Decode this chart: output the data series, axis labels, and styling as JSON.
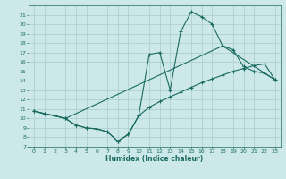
{
  "xlabel": "Humidex (Indice chaleur)",
  "bg_color": "#cce8e8",
  "line_color": "#1a6b60",
  "grid_color": "#aacccc",
  "xlim": [
    -0.5,
    23.5
  ],
  "ylim": [
    7,
    22
  ],
  "xticks": [
    0,
    1,
    2,
    3,
    4,
    5,
    6,
    7,
    8,
    9,
    10,
    11,
    12,
    13,
    14,
    15,
    16,
    17,
    18,
    19,
    20,
    21,
    22,
    23
  ],
  "yticks": [
    7,
    8,
    9,
    10,
    11,
    12,
    13,
    14,
    15,
    16,
    17,
    18,
    19,
    20,
    21
  ],
  "line1_x": [
    0,
    1,
    2,
    3,
    4,
    5,
    6,
    7,
    8,
    9,
    10,
    11,
    12,
    13,
    14,
    15,
    16,
    17,
    18,
    19,
    20,
    21,
    22,
    23
  ],
  "line1_y": [
    10.8,
    10.5,
    10.3,
    10.0,
    9.3,
    9.0,
    8.9,
    8.6,
    7.6,
    8.3,
    10.3,
    16.8,
    17.0,
    13.0,
    19.2,
    21.3,
    20.8,
    20.0,
    17.7,
    17.3,
    15.5,
    15.0,
    14.8,
    14.1
  ],
  "line2_x": [
    0,
    1,
    2,
    3,
    4,
    5,
    6,
    7,
    8,
    9,
    10,
    11,
    12,
    13,
    14,
    15,
    16,
    17,
    18,
    19,
    20,
    21,
    22,
    23
  ],
  "line2_y": [
    10.8,
    10.5,
    10.3,
    10.0,
    9.3,
    9.0,
    8.9,
    8.6,
    7.6,
    8.3,
    10.3,
    11.2,
    11.8,
    12.3,
    12.8,
    13.3,
    13.8,
    14.2,
    14.6,
    15.0,
    15.3,
    15.6,
    15.8,
    14.1
  ],
  "line3_x": [
    0,
    3,
    18,
    23
  ],
  "line3_y": [
    10.8,
    10.0,
    17.7,
    14.1
  ]
}
